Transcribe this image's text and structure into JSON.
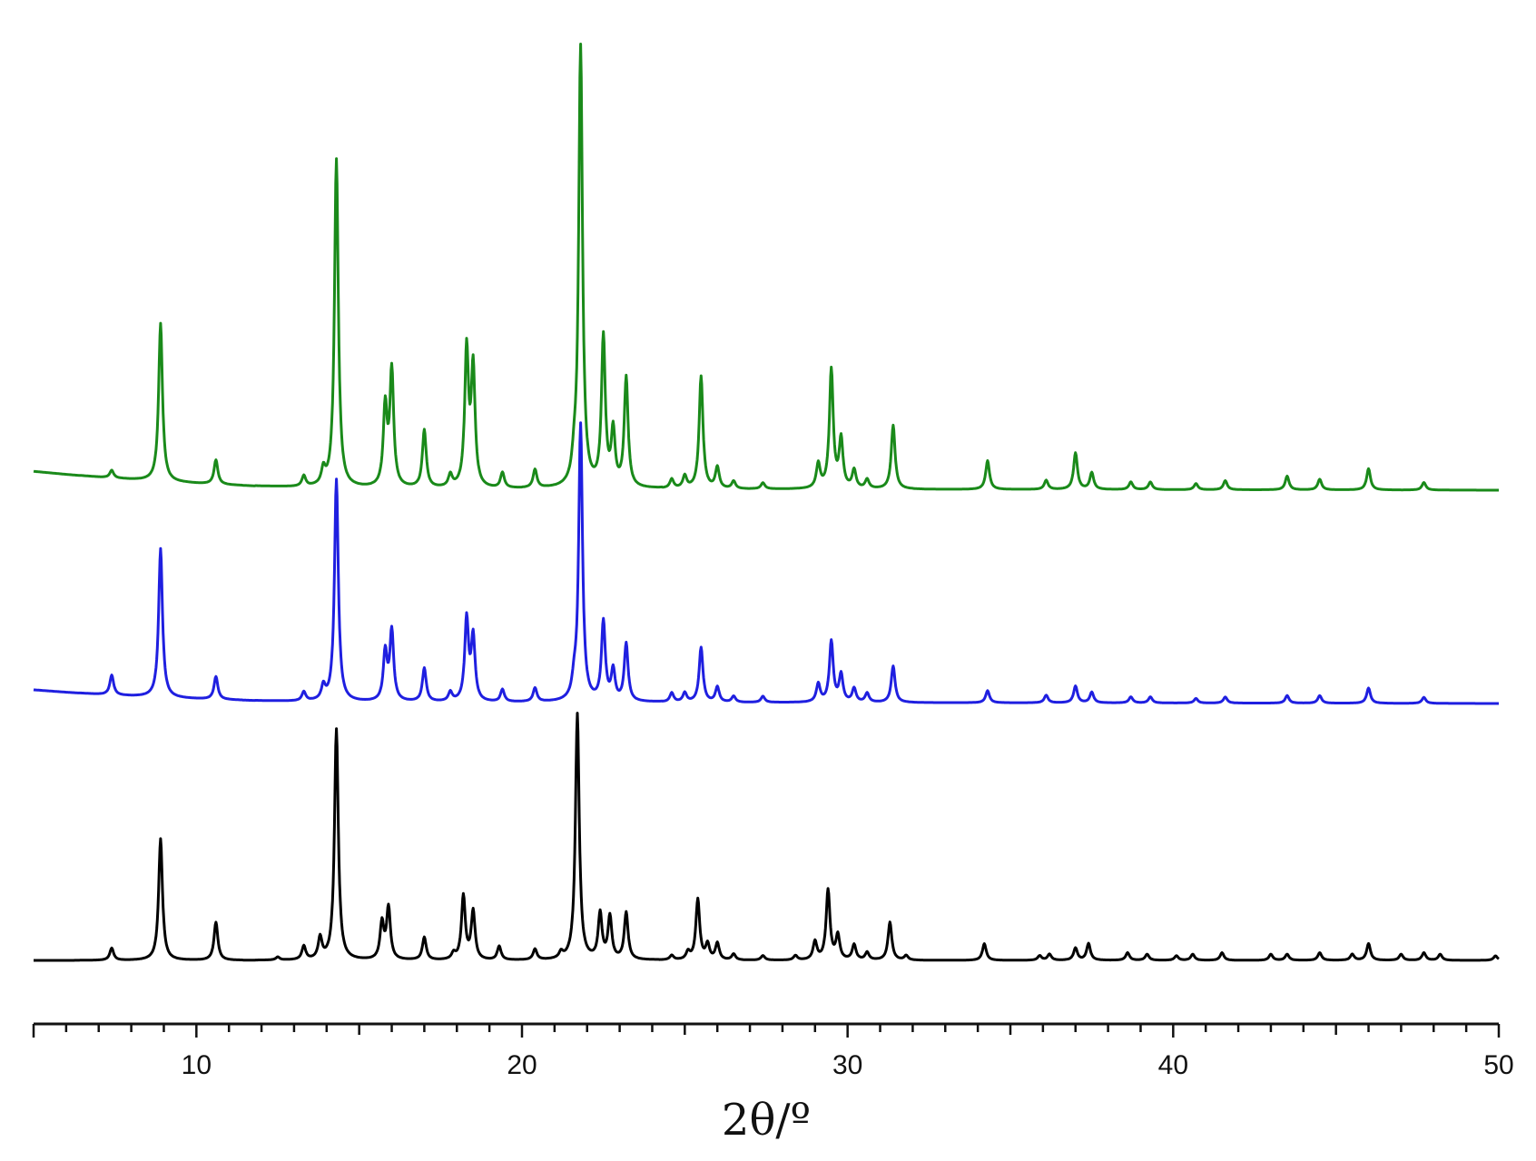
{
  "chart_data": {
    "type": "line",
    "title": "",
    "xlabel": "2θ/º",
    "ylabel": "",
    "xlim": [
      5,
      50
    ],
    "x_ticks": [
      10,
      20,
      30,
      40,
      50
    ],
    "y_axis_shown": false,
    "grid": false,
    "legend": "none",
    "series": [
      {
        "color": "#1a8a1a",
        "baseline": [
          [
            5,
            0.62
          ],
          [
            6,
            0.52
          ],
          [
            7,
            0.43
          ],
          [
            8,
            0.35
          ],
          [
            9,
            0.28
          ],
          [
            10,
            0.22
          ],
          [
            11,
            0.17
          ],
          [
            12,
            0.13
          ],
          [
            13,
            0.1
          ],
          [
            14,
            0.08
          ],
          [
            16,
            0.06
          ],
          [
            20,
            0.04
          ],
          [
            30,
            0.03
          ],
          [
            50,
            0.0
          ]
        ],
        "peaks": [
          [
            7.4,
            0.25
          ],
          [
            8.9,
            5.2
          ],
          [
            10.6,
            0.8
          ],
          [
            13.3,
            0.35
          ],
          [
            13.9,
            0.5
          ],
          [
            14.3,
            10.8
          ],
          [
            15.8,
            2.6
          ],
          [
            16.0,
            3.8
          ],
          [
            17.0,
            1.9
          ],
          [
            17.8,
            0.4
          ],
          [
            18.3,
            4.5
          ],
          [
            18.5,
            3.9
          ],
          [
            19.4,
            0.5
          ],
          [
            20.4,
            0.6
          ],
          [
            21.6,
            0.6
          ],
          [
            21.8,
            14.5
          ],
          [
            22.5,
            4.9
          ],
          [
            22.8,
            1.8
          ],
          [
            23.2,
            3.6
          ],
          [
            24.6,
            0.3
          ],
          [
            25.0,
            0.4
          ],
          [
            25.5,
            3.7
          ],
          [
            26.0,
            0.7
          ],
          [
            26.5,
            0.25
          ],
          [
            27.4,
            0.2
          ],
          [
            29.1,
            0.8
          ],
          [
            29.5,
            3.9
          ],
          [
            29.8,
            1.6
          ],
          [
            30.2,
            0.6
          ],
          [
            30.6,
            0.3
          ],
          [
            31.4,
            2.1
          ],
          [
            34.3,
            0.95
          ],
          [
            36.1,
            0.3
          ],
          [
            37.0,
            1.2
          ],
          [
            37.5,
            0.55
          ],
          [
            38.7,
            0.25
          ],
          [
            39.3,
            0.25
          ],
          [
            40.7,
            0.2
          ],
          [
            41.6,
            0.3
          ],
          [
            43.5,
            0.45
          ],
          [
            44.5,
            0.35
          ],
          [
            46.0,
            0.7
          ],
          [
            47.7,
            0.25
          ]
        ]
      },
      {
        "color": "#1f1fe0",
        "baseline": [
          [
            5,
            0.45
          ],
          [
            6,
            0.37
          ],
          [
            7,
            0.3
          ],
          [
            8,
            0.24
          ],
          [
            9,
            0.19
          ],
          [
            10,
            0.15
          ],
          [
            11,
            0.12
          ],
          [
            12,
            0.09
          ],
          [
            13,
            0.07
          ],
          [
            15,
            0.05
          ],
          [
            20,
            0.04
          ],
          [
            30,
            0.03
          ],
          [
            50,
            0.0
          ]
        ],
        "peaks": [
          [
            7.4,
            0.65
          ],
          [
            8.9,
            4.9
          ],
          [
            10.6,
            0.75
          ],
          [
            13.3,
            0.3
          ],
          [
            13.9,
            0.45
          ],
          [
            14.3,
            7.3
          ],
          [
            15.8,
            1.6
          ],
          [
            16.0,
            2.3
          ],
          [
            17.0,
            1.1
          ],
          [
            17.8,
            0.3
          ],
          [
            18.3,
            2.7
          ],
          [
            18.5,
            2.1
          ],
          [
            19.4,
            0.4
          ],
          [
            20.4,
            0.45
          ],
          [
            21.6,
            0.5
          ],
          [
            21.8,
            9.1
          ],
          [
            22.5,
            2.6
          ],
          [
            22.8,
            1.0
          ],
          [
            23.2,
            1.9
          ],
          [
            24.6,
            0.3
          ],
          [
            25.0,
            0.3
          ],
          [
            25.5,
            1.8
          ],
          [
            26.0,
            0.5
          ],
          [
            26.5,
            0.2
          ],
          [
            27.4,
            0.2
          ],
          [
            29.1,
            0.6
          ],
          [
            29.5,
            2.0
          ],
          [
            29.8,
            0.9
          ],
          [
            30.2,
            0.45
          ],
          [
            30.6,
            0.3
          ],
          [
            31.4,
            1.2
          ],
          [
            34.3,
            0.4
          ],
          [
            36.1,
            0.25
          ],
          [
            37.0,
            0.55
          ],
          [
            37.5,
            0.35
          ],
          [
            38.7,
            0.2
          ],
          [
            39.3,
            0.2
          ],
          [
            40.7,
            0.15
          ],
          [
            41.6,
            0.2
          ],
          [
            43.5,
            0.25
          ],
          [
            44.5,
            0.25
          ],
          [
            46.0,
            0.5
          ],
          [
            47.7,
            0.2
          ]
        ]
      },
      {
        "color": "#000000",
        "baseline": [
          [
            5,
            0.0
          ],
          [
            50,
            0.0
          ]
        ],
        "peaks": [
          [
            7.4,
            0.4
          ],
          [
            8.9,
            4.0
          ],
          [
            10.6,
            1.25
          ],
          [
            12.5,
            0.1
          ],
          [
            13.3,
            0.45
          ],
          [
            13.8,
            0.7
          ],
          [
            14.3,
            7.6
          ],
          [
            15.7,
            1.2
          ],
          [
            15.9,
            1.7
          ],
          [
            17.0,
            0.75
          ],
          [
            17.9,
            0.2
          ],
          [
            18.2,
            2.1
          ],
          [
            18.5,
            1.6
          ],
          [
            19.3,
            0.45
          ],
          [
            20.4,
            0.35
          ],
          [
            21.2,
            0.2
          ],
          [
            21.7,
            8.1
          ],
          [
            22.4,
            1.5
          ],
          [
            22.7,
            1.4
          ],
          [
            23.2,
            1.55
          ],
          [
            24.6,
            0.15
          ],
          [
            25.1,
            0.25
          ],
          [
            25.4,
            2.0
          ],
          [
            25.7,
            0.5
          ],
          [
            26.0,
            0.55
          ],
          [
            26.5,
            0.2
          ],
          [
            27.4,
            0.15
          ],
          [
            28.4,
            0.15
          ],
          [
            29.0,
            0.6
          ],
          [
            29.4,
            2.3
          ],
          [
            29.7,
            0.8
          ],
          [
            30.2,
            0.5
          ],
          [
            30.6,
            0.25
          ],
          [
            31.3,
            1.25
          ],
          [
            31.8,
            0.15
          ],
          [
            34.2,
            0.55
          ],
          [
            35.9,
            0.15
          ],
          [
            36.2,
            0.2
          ],
          [
            37.0,
            0.4
          ],
          [
            37.4,
            0.55
          ],
          [
            38.6,
            0.25
          ],
          [
            39.2,
            0.2
          ],
          [
            40.1,
            0.15
          ],
          [
            40.6,
            0.2
          ],
          [
            41.5,
            0.25
          ],
          [
            43.0,
            0.2
          ],
          [
            43.5,
            0.2
          ],
          [
            44.5,
            0.25
          ],
          [
            45.5,
            0.2
          ],
          [
            46.0,
            0.55
          ],
          [
            47.0,
            0.2
          ],
          [
            47.7,
            0.25
          ],
          [
            48.2,
            0.2
          ],
          [
            49.9,
            0.15
          ]
        ]
      }
    ]
  }
}
